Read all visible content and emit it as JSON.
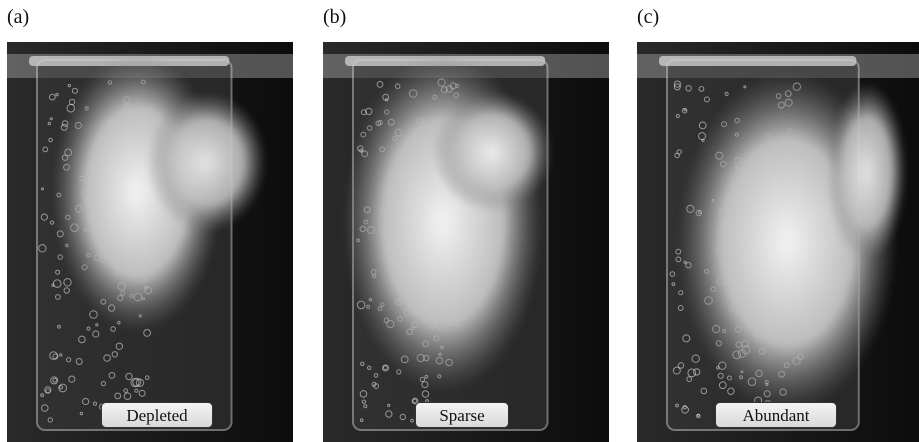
{
  "panels": [
    {
      "label": "(a)",
      "caption": "Depleted"
    },
    {
      "label": "(b)",
      "caption": "Sparse"
    },
    {
      "label": "(c)",
      "caption": "Abundant"
    }
  ]
}
